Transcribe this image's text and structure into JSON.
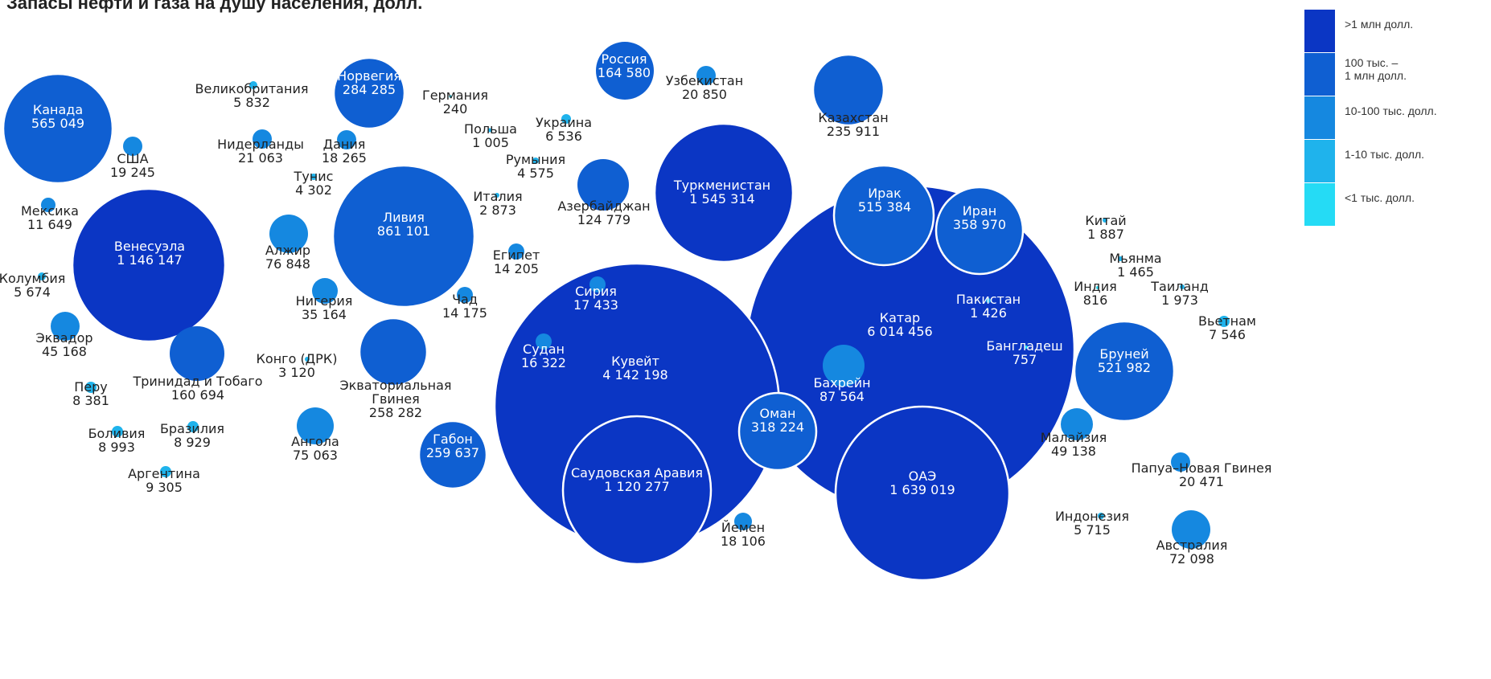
{
  "title": "Запасы нефти и газа на душу населения, долл.",
  "legend": [
    {
      "label": ">1 млн долл.",
      "color": "#0b36c4"
    },
    {
      "label": "100 тыс. –\n1 млн долл.",
      "color": "#0f5fd2"
    },
    {
      "label": "10-100 тыс. долл.",
      "color": "#1588e0"
    },
    {
      "label": "1-10 тыс. долл.",
      "color": "#1fb3ec"
    },
    {
      "label": "<1 тыс. долл.",
      "color": "#25dbf5"
    }
  ],
  "chart_data": {
    "type": "bubble",
    "title": "Запасы нефти и газа на душу населения, долл.",
    "value_unit": "долл. на душу населения",
    "points": [
      {
        "name": "Канада",
        "value": 565049
      },
      {
        "name": "США",
        "value": 19245
      },
      {
        "name": "Мексика",
        "value": 11649
      },
      {
        "name": "Венесуэла",
        "value": 1146147
      },
      {
        "name": "Колумбия",
        "value": 5674
      },
      {
        "name": "Эквадор",
        "value": 45168
      },
      {
        "name": "Перу",
        "value": 8381
      },
      {
        "name": "Боливия",
        "value": 8993
      },
      {
        "name": "Бразилия",
        "value": 8929
      },
      {
        "name": "Аргентина",
        "value": 9305
      },
      {
        "name": "Тринидад и Тобаго",
        "value": 160694
      },
      {
        "name": "Великобритания",
        "value": 5832
      },
      {
        "name": "Норвегия",
        "value": 284285
      },
      {
        "name": "Нидерланды",
        "value": 21063
      },
      {
        "name": "Дания",
        "value": 18265
      },
      {
        "name": "Германия",
        "value": 240
      },
      {
        "name": "Польша",
        "value": 1005
      },
      {
        "name": "Украина",
        "value": 6536
      },
      {
        "name": "Румыния",
        "value": 4575
      },
      {
        "name": "Италия",
        "value": 2873
      },
      {
        "name": "Россия",
        "value": 164580
      },
      {
        "name": "Узбекистан",
        "value": 20850
      },
      {
        "name": "Казахстан",
        "value": 235911
      },
      {
        "name": "Азербайджан",
        "value": 124779
      },
      {
        "name": "Туркменистан",
        "value": 1545314
      },
      {
        "name": "Тунис",
        "value": 4302
      },
      {
        "name": "Ливия",
        "value": 861101
      },
      {
        "name": "Алжир",
        "value": 76848
      },
      {
        "name": "Египет",
        "value": 14205
      },
      {
        "name": "Нигерия",
        "value": 35164
      },
      {
        "name": "Чад",
        "value": 14175
      },
      {
        "name": "Конго (ДРК)",
        "value": 3120
      },
      {
        "name": "Экваториальная Гвинея",
        "value": 258282
      },
      {
        "name": "Ангола",
        "value": 75063
      },
      {
        "name": "Габон",
        "value": 259637
      },
      {
        "name": "Кувейт",
        "value": 4142198
      },
      {
        "name": "Сирия",
        "value": 17433
      },
      {
        "name": "Судан",
        "value": 16322
      },
      {
        "name": "Саудовская Аравия",
        "value": 1120277
      },
      {
        "name": "Йемен",
        "value": 18106
      },
      {
        "name": "Катар",
        "value": 6014456
      },
      {
        "name": "Ирак",
        "value": 515384
      },
      {
        "name": "Иран",
        "value": 358970
      },
      {
        "name": "Пакистан",
        "value": 1426
      },
      {
        "name": "Бангладеш",
        "value": 757
      },
      {
        "name": "Бахрейн",
        "value": 87564
      },
      {
        "name": "Оман",
        "value": 318224
      },
      {
        "name": "ОАЭ",
        "value": 1639019
      },
      {
        "name": "Китай",
        "value": 1887
      },
      {
        "name": "Мьянма",
        "value": 1465
      },
      {
        "name": "Индия",
        "value": 816
      },
      {
        "name": "Таиланд",
        "value": 1973
      },
      {
        "name": "Вьетнам",
        "value": 7546
      },
      {
        "name": "Бруней",
        "value": 521982
      },
      {
        "name": "Малайзия",
        "value": 49138
      },
      {
        "name": "Папуа–Новая Гвинея",
        "value": 20471
      },
      {
        "name": "Индонезия",
        "value": 5715
      },
      {
        "name": "Австралия",
        "value": 72098
      }
    ]
  }
}
